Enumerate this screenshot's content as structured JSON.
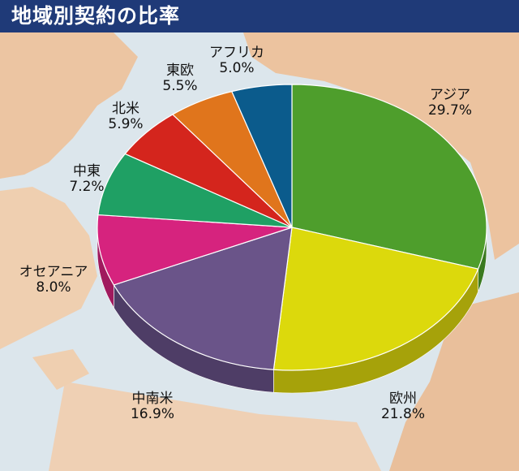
{
  "title": "地域別契約の比率",
  "chart_data": {
    "type": "pie",
    "title": "地域別契約の比率",
    "unit": "%",
    "slices": [
      {
        "label": "アジア",
        "value": 29.7,
        "value_text": "29.7%",
        "color": "#4e9e2c",
        "side": "#3a7a20"
      },
      {
        "label": "欧州",
        "value": 21.8,
        "value_text": "21.8%",
        "color": "#dcd90c",
        "side": "#a6a20a"
      },
      {
        "label": "中南米",
        "value": 16.9,
        "value_text": "16.9%",
        "color": "#6a5489",
        "side": "#4e3d66"
      },
      {
        "label": "オセアニア",
        "value": 8.0,
        "value_text": "8.0%",
        "color": "#d6237e",
        "side": "#a01a5e"
      },
      {
        "label": "中東",
        "value": 7.2,
        "value_text": "7.2%",
        "color": "#1fa064",
        "side": "#167a4b"
      },
      {
        "label": "北米",
        "value": 5.9,
        "value_text": "5.9%",
        "color": "#d4251d",
        "side": "#a01c16"
      },
      {
        "label": "東欧",
        "value": 5.5,
        "value_text": "5.5%",
        "color": "#e0751c",
        "side": "#b05a14"
      },
      {
        "label": "アフリカ",
        "value": 5.0,
        "value_text": "5.0%",
        "color": "#0b5b8c",
        "side": "#084468"
      }
    ],
    "start": "12 o'clock",
    "direction": "clockwise",
    "style": "3d-tilted",
    "background": "map"
  }
}
